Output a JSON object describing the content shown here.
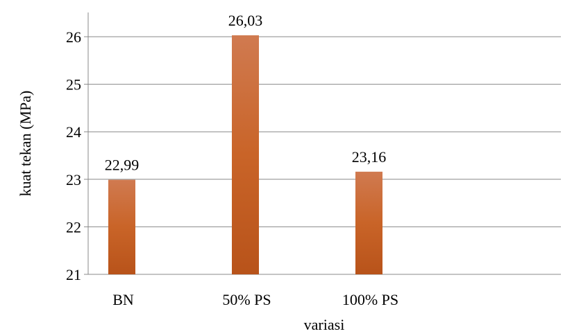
{
  "chart_data": {
    "type": "bar",
    "categories": [
      "BN",
      "50% PS",
      "100% PS"
    ],
    "values": [
      22.99,
      26.03,
      23.16
    ],
    "value_labels": [
      "22,99",
      "26,03",
      "23,16"
    ],
    "xlabel": "variasi",
    "ylabel": "kuat tekan (MPa)",
    "ylim": [
      21,
      26.5
    ],
    "yticks": [
      21,
      22,
      23,
      24,
      25,
      26
    ],
    "grid": true,
    "legend": "none",
    "bar_color_top": "#d07a50",
    "bar_color_mid": "#c96428",
    "bar_color_bottom": "#b8531a",
    "grid_color": "#888888",
    "axis_color": "#888888"
  }
}
